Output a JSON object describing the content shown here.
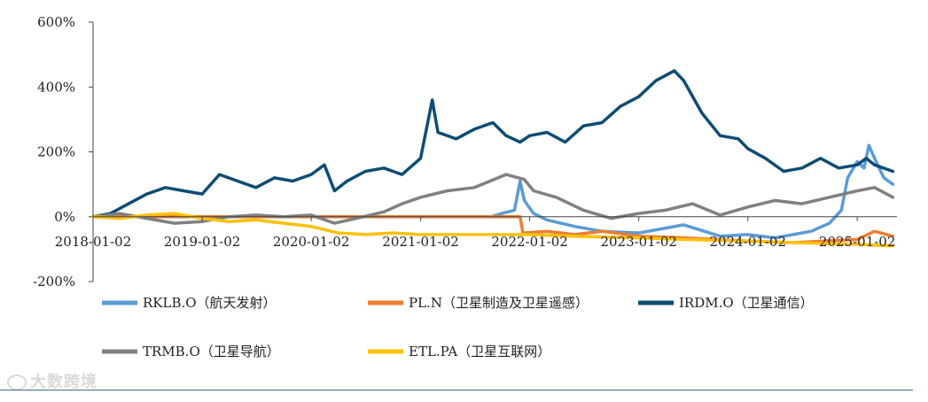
{
  "chart_data": {
    "type": "line",
    "title": "",
    "xlabel": "",
    "ylabel": "",
    "ylim": [
      -200,
      600
    ],
    "xlim": [
      "2018-01-02",
      "2025-05-15"
    ],
    "y_ticks": [
      {
        "value": 600,
        "label": "600%"
      },
      {
        "value": 400,
        "label": "400%"
      },
      {
        "value": 200,
        "label": "200%"
      },
      {
        "value": 0,
        "label": "0%"
      },
      {
        "value": -200,
        "label": "-200%"
      }
    ],
    "x_ticks": [
      "2018-01-02",
      "2019-01-02",
      "2020-01-02",
      "2021-01-02",
      "2022-01-02",
      "2023-01-02",
      "2024-01-02",
      "2025-01-02"
    ],
    "grid": false,
    "legend_position": "bottom",
    "series": [
      {
        "name": "RKLB.O（航天发射）",
        "color": "#5b9bd5",
        "points": [
          [
            "2018-01-02",
            0
          ],
          [
            "2021-08-25",
            0
          ],
          [
            "2021-10-01",
            10
          ],
          [
            "2021-11-12",
            20
          ],
          [
            "2021-12-01",
            110
          ],
          [
            "2021-12-15",
            50
          ],
          [
            "2022-01-15",
            10
          ],
          [
            "2022-03-01",
            -10
          ],
          [
            "2022-06-01",
            -30
          ],
          [
            "2022-09-01",
            -45
          ],
          [
            "2023-01-02",
            -50
          ],
          [
            "2023-06-01",
            -25
          ],
          [
            "2023-10-01",
            -60
          ],
          [
            "2024-01-02",
            -55
          ],
          [
            "2024-04-01",
            -65
          ],
          [
            "2024-08-01",
            -45
          ],
          [
            "2024-10-01",
            -20
          ],
          [
            "2024-11-10",
            20
          ],
          [
            "2024-12-01",
            120
          ],
          [
            "2025-01-02",
            170
          ],
          [
            "2025-01-25",
            150
          ],
          [
            "2025-02-10",
            220
          ],
          [
            "2025-03-01",
            180
          ],
          [
            "2025-04-01",
            120
          ],
          [
            "2025-05-01",
            100
          ]
        ]
      },
      {
        "name": "PL.N（卫星制造及卫星遥感）",
        "color": "#ed7d31",
        "points": [
          [
            "2018-01-02",
            0
          ],
          [
            "2021-12-01",
            0
          ],
          [
            "2021-12-10",
            -50
          ],
          [
            "2022-03-01",
            -45
          ],
          [
            "2022-06-01",
            -55
          ],
          [
            "2022-09-01",
            -45
          ],
          [
            "2023-01-02",
            -60
          ],
          [
            "2023-06-01",
            -65
          ],
          [
            "2024-01-02",
            -75
          ],
          [
            "2024-06-01",
            -80
          ],
          [
            "2025-01-02",
            -70
          ],
          [
            "2025-03-01",
            -45
          ],
          [
            "2025-05-01",
            -60
          ]
        ]
      },
      {
        "name": "IRDM.O（卫星通信）",
        "color": "#0e4c74",
        "points": [
          [
            "2018-01-02",
            0
          ],
          [
            "2018-03-01",
            10
          ],
          [
            "2018-05-01",
            40
          ],
          [
            "2018-07-01",
            70
          ],
          [
            "2018-09-01",
            90
          ],
          [
            "2018-11-01",
            80
          ],
          [
            "2019-01-02",
            70
          ],
          [
            "2019-03-01",
            130
          ],
          [
            "2019-05-01",
            110
          ],
          [
            "2019-07-01",
            90
          ],
          [
            "2019-09-01",
            120
          ],
          [
            "2019-11-01",
            110
          ],
          [
            "2020-01-02",
            130
          ],
          [
            "2020-02-15",
            160
          ],
          [
            "2020-03-20",
            80
          ],
          [
            "2020-05-01",
            110
          ],
          [
            "2020-07-01",
            140
          ],
          [
            "2020-09-01",
            150
          ],
          [
            "2020-11-01",
            130
          ],
          [
            "2021-01-02",
            180
          ],
          [
            "2021-02-10",
            360
          ],
          [
            "2021-03-01",
            260
          ],
          [
            "2021-05-01",
            240
          ],
          [
            "2021-07-01",
            270
          ],
          [
            "2021-09-01",
            290
          ],
          [
            "2021-10-15",
            250
          ],
          [
            "2021-12-01",
            230
          ],
          [
            "2022-01-02",
            250
          ],
          [
            "2022-03-01",
            260
          ],
          [
            "2022-05-01",
            230
          ],
          [
            "2022-07-01",
            280
          ],
          [
            "2022-09-01",
            290
          ],
          [
            "2022-11-01",
            340
          ],
          [
            "2023-01-02",
            370
          ],
          [
            "2023-03-01",
            420
          ],
          [
            "2023-05-01",
            450
          ],
          [
            "2023-06-01",
            420
          ],
          [
            "2023-08-01",
            320
          ],
          [
            "2023-10-01",
            250
          ],
          [
            "2023-12-01",
            240
          ],
          [
            "2024-01-02",
            210
          ],
          [
            "2024-03-01",
            180
          ],
          [
            "2024-05-01",
            140
          ],
          [
            "2024-07-01",
            150
          ],
          [
            "2024-09-01",
            180
          ],
          [
            "2024-11-01",
            150
          ],
          [
            "2025-01-02",
            160
          ],
          [
            "2025-02-01",
            180
          ],
          [
            "2025-03-01",
            160
          ],
          [
            "2025-05-01",
            140
          ]
        ]
      },
      {
        "name": "TRMB.O（卫星导航）",
        "color": "#808080",
        "points": [
          [
            "2018-01-02",
            0
          ],
          [
            "2018-04-01",
            10
          ],
          [
            "2018-07-01",
            -5
          ],
          [
            "2018-10-01",
            -20
          ],
          [
            "2019-01-02",
            -15
          ],
          [
            "2019-04-01",
            0
          ],
          [
            "2019-07-01",
            5
          ],
          [
            "2019-10-01",
            0
          ],
          [
            "2020-01-02",
            5
          ],
          [
            "2020-03-20",
            -20
          ],
          [
            "2020-06-01",
            -5
          ],
          [
            "2020-09-01",
            15
          ],
          [
            "2020-11-01",
            40
          ],
          [
            "2021-01-02",
            60
          ],
          [
            "2021-04-01",
            80
          ],
          [
            "2021-07-01",
            90
          ],
          [
            "2021-10-15",
            130
          ],
          [
            "2021-12-15",
            115
          ],
          [
            "2022-01-15",
            80
          ],
          [
            "2022-04-01",
            60
          ],
          [
            "2022-07-01",
            20
          ],
          [
            "2022-10-01",
            -5
          ],
          [
            "2023-01-02",
            10
          ],
          [
            "2023-04-01",
            20
          ],
          [
            "2023-07-01",
            40
          ],
          [
            "2023-10-01",
            5
          ],
          [
            "2024-01-02",
            30
          ],
          [
            "2024-04-01",
            50
          ],
          [
            "2024-07-01",
            40
          ],
          [
            "2024-10-01",
            60
          ],
          [
            "2025-01-02",
            80
          ],
          [
            "2025-03-01",
            90
          ],
          [
            "2025-05-01",
            60
          ]
        ]
      },
      {
        "name": "ETL.PA（卫星互联网）",
        "color": "#ffc000",
        "points": [
          [
            "2018-01-02",
            0
          ],
          [
            "2018-04-01",
            -5
          ],
          [
            "2018-07-01",
            5
          ],
          [
            "2018-10-01",
            10
          ],
          [
            "2019-01-02",
            -5
          ],
          [
            "2019-04-01",
            -15
          ],
          [
            "2019-07-01",
            -10
          ],
          [
            "2019-10-01",
            -20
          ],
          [
            "2020-01-02",
            -30
          ],
          [
            "2020-04-01",
            -50
          ],
          [
            "2020-07-01",
            -55
          ],
          [
            "2020-10-01",
            -50
          ],
          [
            "2021-01-02",
            -55
          ],
          [
            "2021-06-01",
            -55
          ],
          [
            "2022-01-02",
            -55
          ],
          [
            "2022-06-01",
            -60
          ],
          [
            "2023-01-02",
            -65
          ],
          [
            "2023-06-01",
            -70
          ],
          [
            "2024-01-02",
            -75
          ],
          [
            "2024-06-01",
            -80
          ],
          [
            "2025-01-02",
            -85
          ],
          [
            "2025-05-01",
            -90
          ]
        ]
      }
    ]
  },
  "watermark": "大数跨境"
}
